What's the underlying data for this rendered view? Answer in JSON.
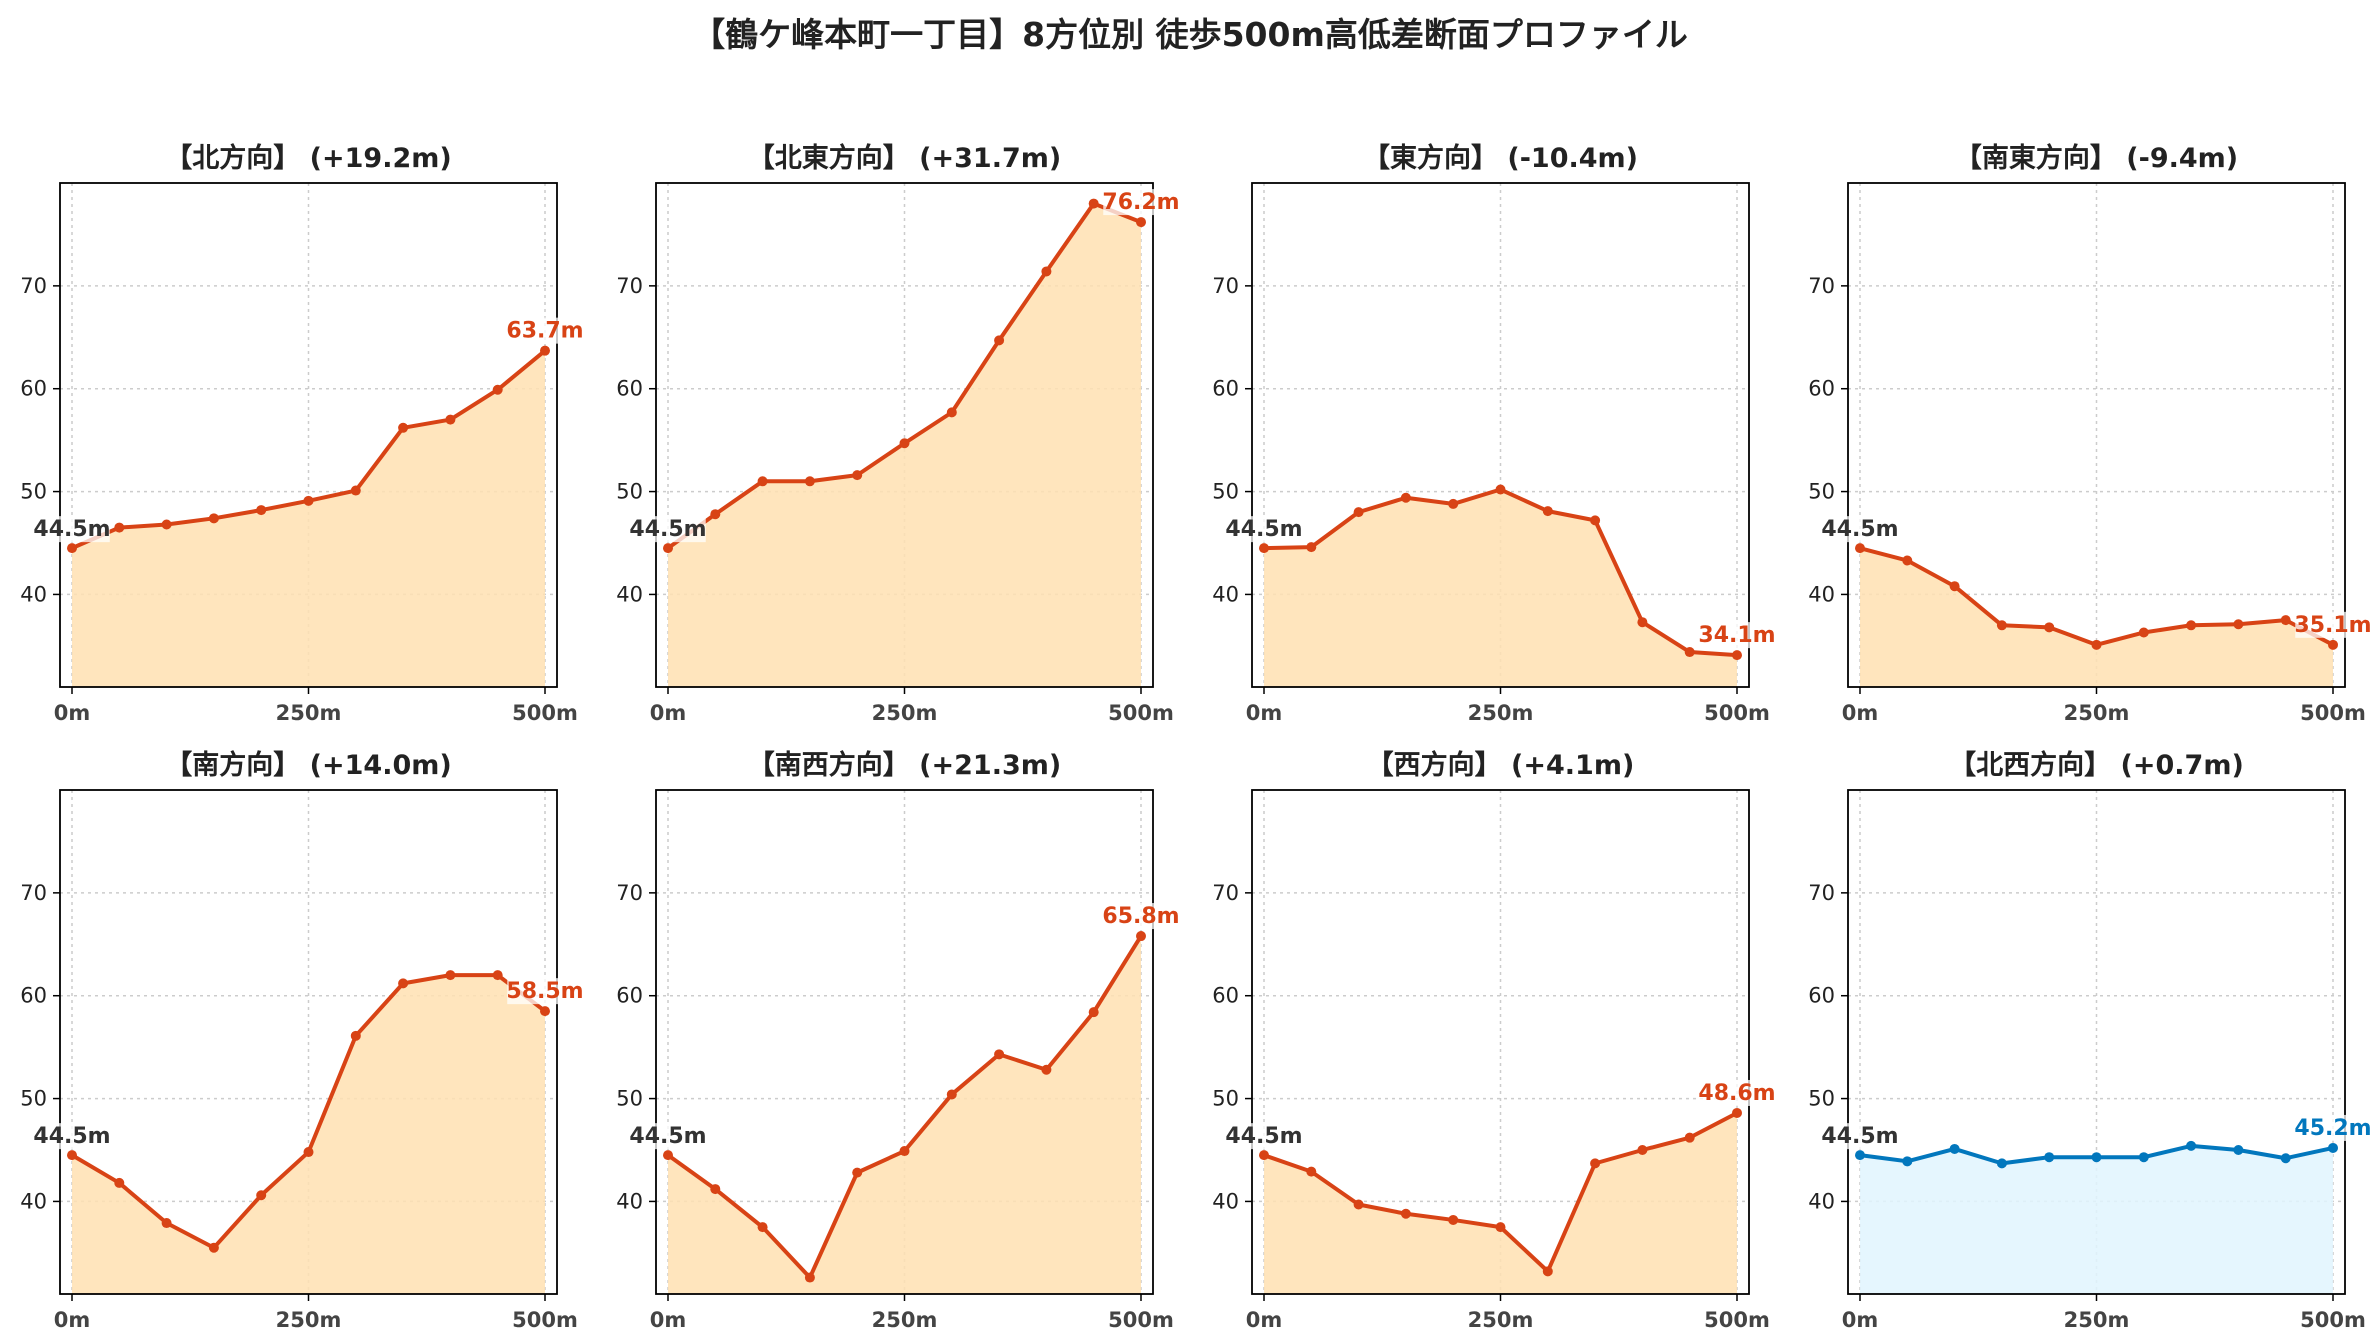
{
  "title": "【鶴ケ峰本町一丁目】8方位別 徒歩500m高低差断面プロファイル",
  "colors": {
    "rise_line": "#d84315",
    "rise_fill": "#ffe0b2",
    "flat_line": "#0277bd",
    "flat_fill": "#e1f5fe",
    "start_label": "#333333",
    "grid": "#cccccc",
    "axis": "#000000"
  },
  "chart_data": [
    {
      "type": "area",
      "title": "【北方向】 (+19.2m)",
      "xlabel": "",
      "ylabel": "",
      "xlim": [
        0,
        500
      ],
      "ylim": [
        31,
        80
      ],
      "grid": true,
      "x": [
        0,
        50,
        100,
        150,
        200,
        250,
        300,
        350,
        400,
        450,
        500
      ],
      "xticks": [
        "0m",
        "250m",
        "500m"
      ],
      "yticks": [
        40,
        50,
        60,
        70
      ],
      "values": [
        44.5,
        46.5,
        46.8,
        47.4,
        48.2,
        49.1,
        50.1,
        56.2,
        57.0,
        59.9,
        63.7
      ],
      "start_label": "44.5m",
      "end_label": "63.7m",
      "theme": "rise"
    },
    {
      "type": "area",
      "title": "【北東方向】 (+31.7m)",
      "xlabel": "",
      "ylabel": "",
      "xlim": [
        0,
        500
      ],
      "ylim": [
        31,
        80
      ],
      "grid": true,
      "x": [
        0,
        50,
        100,
        150,
        200,
        250,
        300,
        350,
        400,
        450,
        500
      ],
      "xticks": [
        "0m",
        "250m",
        "500m"
      ],
      "yticks": [
        40,
        50,
        60,
        70
      ],
      "values": [
        44.5,
        47.8,
        51.0,
        51.0,
        51.6,
        54.7,
        57.7,
        64.7,
        71.4,
        78.0,
        76.2
      ],
      "start_label": "44.5m",
      "end_label": "76.2m",
      "theme": "rise"
    },
    {
      "type": "area",
      "title": "【東方向】 (-10.4m)",
      "xlabel": "",
      "ylabel": "",
      "xlim": [
        0,
        500
      ],
      "ylim": [
        31,
        80
      ],
      "grid": true,
      "x": [
        0,
        50,
        100,
        150,
        200,
        250,
        300,
        350,
        400,
        450,
        500
      ],
      "xticks": [
        "0m",
        "250m",
        "500m"
      ],
      "yticks": [
        40,
        50,
        60,
        70
      ],
      "values": [
        44.5,
        44.6,
        48.0,
        49.4,
        48.8,
        50.2,
        48.1,
        47.2,
        37.3,
        34.4,
        34.1
      ],
      "start_label": "44.5m",
      "end_label": "34.1m",
      "theme": "rise"
    },
    {
      "type": "area",
      "title": "【南東方向】 (-9.4m)",
      "xlabel": "",
      "ylabel": "",
      "xlim": [
        0,
        500
      ],
      "ylim": [
        31,
        80
      ],
      "grid": true,
      "x": [
        0,
        50,
        100,
        150,
        200,
        250,
        300,
        350,
        400,
        450,
        500
      ],
      "xticks": [
        "0m",
        "250m",
        "500m"
      ],
      "yticks": [
        40,
        50,
        60,
        70
      ],
      "values": [
        44.5,
        43.3,
        40.8,
        37.0,
        36.8,
        35.1,
        36.3,
        37.0,
        37.1,
        37.5,
        35.1
      ],
      "start_label": "44.5m",
      "end_label": "35.1m",
      "theme": "rise"
    },
    {
      "type": "area",
      "title": "【南方向】 (+14.0m)",
      "xlabel": "",
      "ylabel": "",
      "xlim": [
        0,
        500
      ],
      "ylim": [
        31,
        80
      ],
      "grid": true,
      "x": [
        0,
        50,
        100,
        150,
        200,
        250,
        300,
        350,
        400,
        450,
        500
      ],
      "xticks": [
        "0m",
        "250m",
        "500m"
      ],
      "yticks": [
        40,
        50,
        60,
        70
      ],
      "values": [
        44.5,
        41.8,
        37.9,
        35.5,
        40.6,
        44.8,
        56.1,
        61.2,
        62.0,
        62.0,
        58.5
      ],
      "start_label": "44.5m",
      "end_label": "58.5m",
      "theme": "rise"
    },
    {
      "type": "area",
      "title": "【南西方向】 (+21.3m)",
      "xlabel": "",
      "ylabel": "",
      "xlim": [
        0,
        500
      ],
      "ylim": [
        31,
        80
      ],
      "grid": true,
      "x": [
        0,
        50,
        100,
        150,
        200,
        250,
        300,
        350,
        400,
        450,
        500
      ],
      "xticks": [
        "0m",
        "250m",
        "500m"
      ],
      "yticks": [
        40,
        50,
        60,
        70
      ],
      "values": [
        44.5,
        41.2,
        37.5,
        32.6,
        42.8,
        44.9,
        50.4,
        54.3,
        52.8,
        58.4,
        65.8
      ],
      "start_label": "44.5m",
      "end_label": "65.8m",
      "theme": "rise"
    },
    {
      "type": "area",
      "title": "【西方向】 (+4.1m)",
      "xlabel": "",
      "ylabel": "",
      "xlim": [
        0,
        500
      ],
      "ylim": [
        31,
        80
      ],
      "grid": true,
      "x": [
        0,
        50,
        100,
        150,
        200,
        250,
        300,
        350,
        400,
        450,
        500
      ],
      "xticks": [
        "0m",
        "250m",
        "500m"
      ],
      "yticks": [
        40,
        50,
        60,
        70
      ],
      "values": [
        44.5,
        42.9,
        39.7,
        38.8,
        38.2,
        37.5,
        33.2,
        43.7,
        45.0,
        46.2,
        48.6
      ],
      "start_label": "44.5m",
      "end_label": "48.6m",
      "theme": "rise"
    },
    {
      "type": "area",
      "title": "【北西方向】 (+0.7m)",
      "xlabel": "",
      "ylabel": "",
      "xlim": [
        0,
        500
      ],
      "ylim": [
        31,
        80
      ],
      "grid": true,
      "x": [
        0,
        50,
        100,
        150,
        200,
        250,
        300,
        350,
        400,
        450,
        500
      ],
      "xticks": [
        "0m",
        "250m",
        "500m"
      ],
      "yticks": [
        40,
        50,
        60,
        70
      ],
      "values": [
        44.5,
        43.9,
        45.1,
        43.7,
        44.3,
        44.3,
        44.3,
        45.4,
        45.0,
        44.2,
        45.2
      ],
      "start_label": "44.5m",
      "end_label": "45.2m",
      "theme": "flat"
    }
  ]
}
